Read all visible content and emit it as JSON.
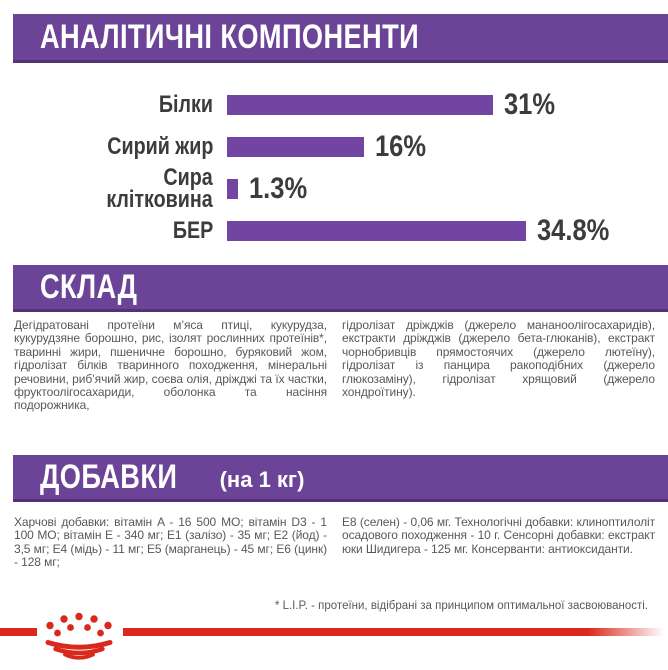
{
  "colors": {
    "header_purple": "#6b4397",
    "header_border_purple": "#543177",
    "bar_purple": "#7345a2",
    "label_dark": "#3c3c3e",
    "body_gray": "#58585a",
    "brand_red": "#da291c"
  },
  "analytical": {
    "title": "АНАЛІТИЧНІ КОМПОНЕНТИ"
  },
  "chart_data": {
    "type": "bar",
    "orientation": "horizontal",
    "title": "АНАЛІТИЧНІ КОМПОНЕНТИ",
    "categories": [
      "Білки",
      "Сирий жир",
      "Сира\nклітковина",
      "БЕР"
    ],
    "values": [
      31,
      16,
      1.3,
      34.8
    ],
    "value_labels": [
      "31%",
      "16%",
      "1.3%",
      "34.8%"
    ],
    "unit": "%",
    "xlim": [
      0,
      36.2
    ],
    "grid": false,
    "legend": false,
    "bar_color": "#7345a2"
  },
  "composition": {
    "title": "СКЛАД",
    "col_left": "Дегідратовані протеїни м’яса птиці, кукурудза, кукурудзяне борошно, рис, ізолят рослинних протеїнів*, тваринні жири, пшеничне борошно, буряковий жом, гідролізат білків тваринного походження, мінеральні речовини, риб’ячий жир, соєва олія, дріжджі та їх частки, фруктоолігосахариди, оболонка та насіння подорожника,",
    "col_right": "гідролізат дріжджів (джерело мананоолігосахаридів), екстракти дріжджів (джерело бета-глюканів), екстракт чорнобривців прямостоячих (джерело лютеїну), гідролізат із панцира ракоподібних (джерело глюкозаміну), гідролізат хрящовий (джерело хондроїтину)."
  },
  "additives": {
    "title": "ДОБАВКИ",
    "title_suffix": "(на 1 кг)",
    "col_left": "Харчові добавки: вітамін A - 16 500 МО; вітамін D3 - 1 100 МО; вітамін E - 340 мг; E1 (залізо) - 35 мг; E2 (йод) - 3,5 мг; E4 (мідь) - 11 мг; E5 (марганець) - 45 мг; E6 (цинк) - 128 мг;",
    "col_right": "E8 (селен) - 0,06 мг. Технологічні добавки: клиноптилоліт осадового походження - 10 г. Сенсорні добавки: екстракт юки Шидигера - 125 мг. Консерванти: антиоксиданти."
  },
  "footnote": "* L.I.P. - протеїни, відібрані за принципом оптимальної засвоюваності.",
  "logo": {
    "name": "royal-canin-crown"
  }
}
